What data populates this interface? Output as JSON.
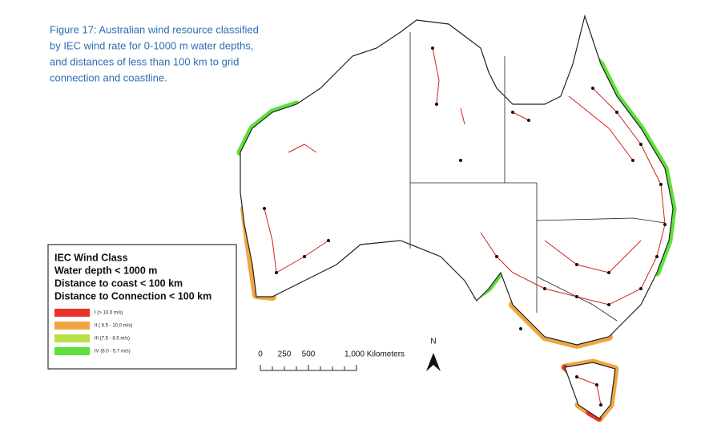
{
  "caption": [
    "Figure 17: Australian wind resource classified",
    "by IEC wind rate for 0-1000 m water depths,",
    "and distances of less than 100 km to grid",
    "connection and coastline."
  ],
  "legend": {
    "title_lines": [
      "IEC Wind Class",
      "Water depth < 1000 m",
      "Distance to coast < 100 km",
      "Distance to Connection < 100 km"
    ],
    "items": [
      {
        "label": "I (> 10.0 m/s)",
        "color": "#e8322a"
      },
      {
        "label": "II ( 8.5 - 10.0 m/s)",
        "color": "#f0a640"
      },
      {
        "label": "III (7.5 - 8.5 m/s)",
        "color": "#b8e04a"
      },
      {
        "label": "IV (6.0 - 5.7 m/s)",
        "color": "#5ee03a"
      }
    ]
  },
  "scale": {
    "labels": [
      "0",
      "250",
      "500",
      "1,000 Kilometers"
    ]
  },
  "north": "N"
}
